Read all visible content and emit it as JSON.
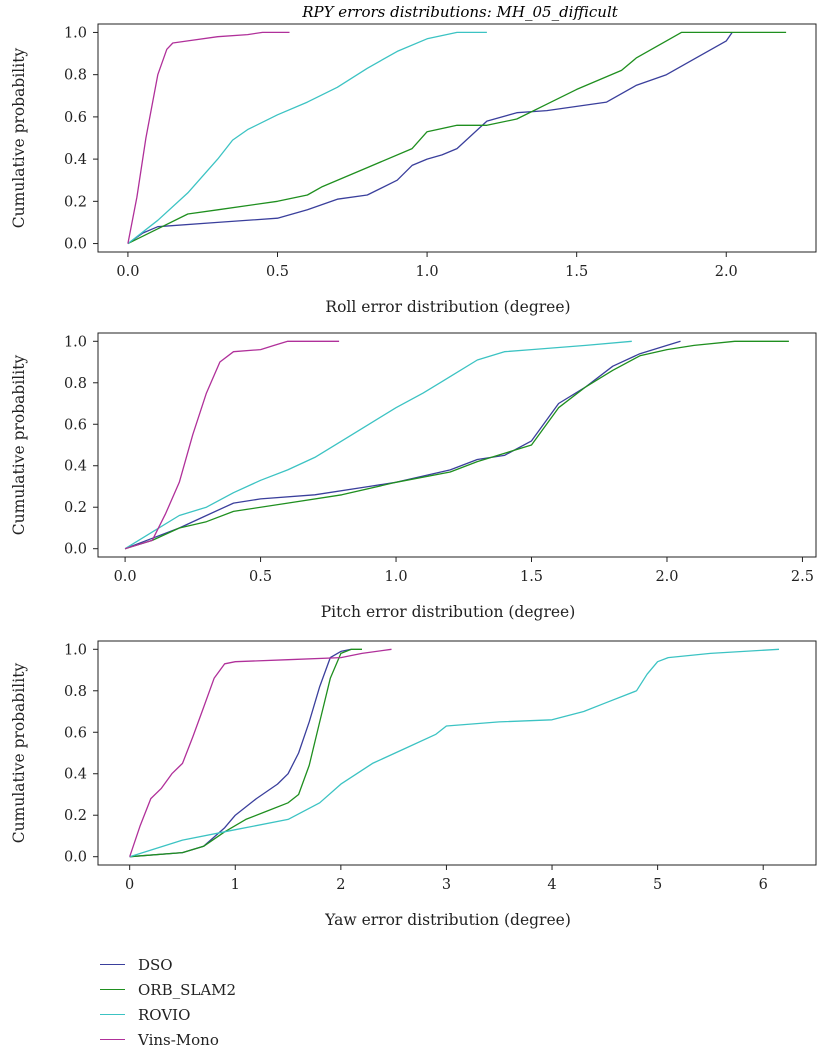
{
  "figure_title": "RPY errors distributions: MH_05_difficult",
  "colors": {
    "DSO": "#3a3f9c",
    "ORB_SLAM2": "#1f8f1f",
    "ROVIO": "#3cc3c3",
    "Vins-Mono": "#b0309a"
  },
  "legend": [
    {
      "name": "DSO",
      "color": "#3a3f9c"
    },
    {
      "name": "ORB_SLAM2",
      "color": "#1f8f1f"
    },
    {
      "name": "ROVIO",
      "color": "#3cc3c3"
    },
    {
      "name": "Vins-Mono",
      "color": "#b0309a"
    }
  ],
  "chart_data": [
    {
      "type": "line",
      "title": "RPY errors distributions: MH_05_difficult",
      "xlabel": "Roll error distribution (degree)",
      "ylabel": "Cumulative probability",
      "xlim": [
        -0.1,
        2.3
      ],
      "ylim": [
        -0.04,
        1.04
      ],
      "xticks": [
        0.0,
        0.5,
        1.0,
        1.5,
        2.0
      ],
      "xtick_labels": [
        "0.0",
        "0.5",
        "1.0",
        "1.5",
        "2.0"
      ],
      "yticks": [
        0.0,
        0.2,
        0.4,
        0.6,
        0.8,
        1.0
      ],
      "ytick_labels": [
        "0.0",
        "0.2",
        "0.4",
        "0.6",
        "0.8",
        "1.0"
      ],
      "series": [
        {
          "name": "DSO",
          "x": [
            0,
            0.05,
            0.1,
            0.3,
            0.5,
            0.6,
            0.7,
            0.8,
            0.9,
            0.95,
            1.0,
            1.05,
            1.1,
            1.2,
            1.3,
            1.4,
            1.6,
            1.7,
            1.8,
            1.9,
            2.0,
            2.02
          ],
          "y": [
            0,
            0.05,
            0.08,
            0.1,
            0.12,
            0.16,
            0.21,
            0.23,
            0.3,
            0.37,
            0.4,
            0.42,
            0.45,
            0.58,
            0.62,
            0.63,
            0.67,
            0.75,
            0.8,
            0.88,
            0.96,
            1.0
          ]
        },
        {
          "name": "ORB_SLAM2",
          "x": [
            0,
            0.1,
            0.2,
            0.3,
            0.5,
            0.6,
            0.65,
            0.8,
            0.95,
            1.0,
            1.1,
            1.2,
            1.3,
            1.4,
            1.5,
            1.65,
            1.7,
            1.8,
            1.85,
            2.0,
            2.2
          ],
          "y": [
            0,
            0.07,
            0.14,
            0.16,
            0.2,
            0.23,
            0.27,
            0.36,
            0.45,
            0.53,
            0.56,
            0.56,
            0.59,
            0.66,
            0.73,
            0.82,
            0.88,
            0.96,
            1.0,
            1.0,
            1.0
          ]
        },
        {
          "name": "ROVIO",
          "x": [
            0,
            0.1,
            0.2,
            0.3,
            0.35,
            0.4,
            0.5,
            0.6,
            0.7,
            0.8,
            0.9,
            1.0,
            1.1,
            1.2
          ],
          "y": [
            0,
            0.11,
            0.24,
            0.4,
            0.49,
            0.54,
            0.61,
            0.67,
            0.74,
            0.83,
            0.91,
            0.97,
            1.0,
            1.0
          ]
        },
        {
          "name": "Vins-Mono",
          "x": [
            0,
            0.03,
            0.06,
            0.1,
            0.13,
            0.15,
            0.2,
            0.3,
            0.4,
            0.45,
            0.54
          ],
          "y": [
            0,
            0.22,
            0.5,
            0.8,
            0.92,
            0.95,
            0.96,
            0.98,
            0.99,
            1.0,
            1.0
          ]
        }
      ]
    },
    {
      "type": "line",
      "xlabel": "Pitch error distribution (degree)",
      "ylabel": "Cumulative probability",
      "xlim": [
        -0.1,
        2.55
      ],
      "ylim": [
        -0.04,
        1.04
      ],
      "xticks": [
        0.0,
        0.5,
        1.0,
        1.5,
        2.0,
        2.5
      ],
      "xtick_labels": [
        "0.0",
        "0.5",
        "1.0",
        "1.5",
        "2.0",
        "2.5"
      ],
      "yticks": [
        0.0,
        0.2,
        0.4,
        0.6,
        0.8,
        1.0
      ],
      "ytick_labels": [
        "0.0",
        "0.2",
        "0.4",
        "0.6",
        "0.8",
        "1.0"
      ],
      "series": [
        {
          "name": "DSO",
          "x": [
            0,
            0.1,
            0.2,
            0.3,
            0.4,
            0.5,
            0.7,
            0.9,
            1.0,
            1.2,
            1.3,
            1.4,
            1.5,
            1.6,
            1.7,
            1.8,
            1.9,
            2.0,
            2.05
          ],
          "y": [
            0,
            0.05,
            0.1,
            0.16,
            0.22,
            0.24,
            0.26,
            0.3,
            0.32,
            0.38,
            0.43,
            0.45,
            0.52,
            0.7,
            0.78,
            0.88,
            0.94,
            0.98,
            1.0
          ]
        },
        {
          "name": "ORB_SLAM2",
          "x": [
            0,
            0.1,
            0.2,
            0.3,
            0.4,
            0.6,
            0.8,
            1.0,
            1.2,
            1.3,
            1.5,
            1.6,
            1.7,
            1.8,
            1.9,
            2.0,
            2.1,
            2.25,
            2.45
          ],
          "y": [
            0,
            0.04,
            0.1,
            0.13,
            0.18,
            0.22,
            0.26,
            0.32,
            0.37,
            0.42,
            0.5,
            0.68,
            0.78,
            0.86,
            0.93,
            0.96,
            0.98,
            1.0,
            1.0
          ]
        },
        {
          "name": "ROVIO",
          "x": [
            0,
            0.1,
            0.2,
            0.3,
            0.4,
            0.5,
            0.6,
            0.7,
            0.8,
            0.9,
            1.0,
            1.1,
            1.2,
            1.3,
            1.4,
            1.5,
            1.7,
            1.87
          ],
          "y": [
            0,
            0.08,
            0.16,
            0.2,
            0.27,
            0.33,
            0.38,
            0.44,
            0.52,
            0.6,
            0.68,
            0.75,
            0.83,
            0.91,
            0.95,
            0.96,
            0.98,
            1.0
          ]
        },
        {
          "name": "Vins-Mono",
          "x": [
            0,
            0.1,
            0.15,
            0.2,
            0.25,
            0.3,
            0.35,
            0.4,
            0.5,
            0.55,
            0.6,
            0.7,
            0.79
          ],
          "y": [
            0,
            0.04,
            0.17,
            0.32,
            0.55,
            0.75,
            0.9,
            0.95,
            0.96,
            0.98,
            1.0,
            1.0,
            1.0
          ]
        }
      ]
    },
    {
      "type": "line",
      "xlabel": "Yaw error distribution (degree)",
      "ylabel": "Cumulative probability",
      "xlim": [
        -0.3,
        6.5
      ],
      "ylim": [
        -0.04,
        1.04
      ],
      "xticks": [
        0,
        1,
        2,
        3,
        4,
        5,
        6
      ],
      "xtick_labels": [
        "0",
        "1",
        "2",
        "3",
        "4",
        "5",
        "6"
      ],
      "yticks": [
        0.0,
        0.2,
        0.4,
        0.6,
        0.8,
        1.0
      ],
      "ytick_labels": [
        "0.0",
        "0.2",
        "0.4",
        "0.6",
        "0.8",
        "1.0"
      ],
      "series": [
        {
          "name": "DSO",
          "x": [
            0,
            0.5,
            0.7,
            0.9,
            1.0,
            1.2,
            1.4,
            1.5,
            1.6,
            1.7,
            1.8,
            1.9,
            2.0,
            2.1
          ],
          "y": [
            0,
            0.02,
            0.05,
            0.14,
            0.2,
            0.28,
            0.35,
            0.4,
            0.5,
            0.65,
            0.82,
            0.96,
            0.99,
            1.0
          ]
        },
        {
          "name": "ORB_SLAM2",
          "x": [
            0,
            0.5,
            0.7,
            0.9,
            1.1,
            1.3,
            1.5,
            1.6,
            1.7,
            1.8,
            1.9,
            2.0,
            2.1,
            2.2
          ],
          "y": [
            0,
            0.02,
            0.05,
            0.12,
            0.18,
            0.22,
            0.26,
            0.3,
            0.44,
            0.65,
            0.86,
            0.98,
            1.0,
            1.0
          ]
        },
        {
          "name": "ROVIO",
          "x": [
            0,
            0.5,
            1.0,
            1.5,
            1.8,
            2.0,
            2.3,
            2.6,
            2.9,
            3.0,
            3.5,
            4.0,
            4.3,
            4.5,
            4.8,
            4.9,
            5.0,
            5.1,
            5.5,
            6.15
          ],
          "y": [
            0,
            0.08,
            0.13,
            0.18,
            0.26,
            0.35,
            0.45,
            0.52,
            0.59,
            0.63,
            0.65,
            0.66,
            0.7,
            0.74,
            0.8,
            0.88,
            0.94,
            0.96,
            0.98,
            1.0
          ]
        },
        {
          "name": "Vins-Mono",
          "x": [
            0,
            0.1,
            0.2,
            0.3,
            0.4,
            0.5,
            0.6,
            0.7,
            0.8,
            0.9,
            1.0,
            1.5,
            2.0,
            2.2,
            2.48
          ],
          "y": [
            0,
            0.15,
            0.28,
            0.33,
            0.4,
            0.45,
            0.58,
            0.72,
            0.86,
            0.93,
            0.94,
            0.95,
            0.96,
            0.98,
            1.0
          ]
        }
      ]
    }
  ]
}
